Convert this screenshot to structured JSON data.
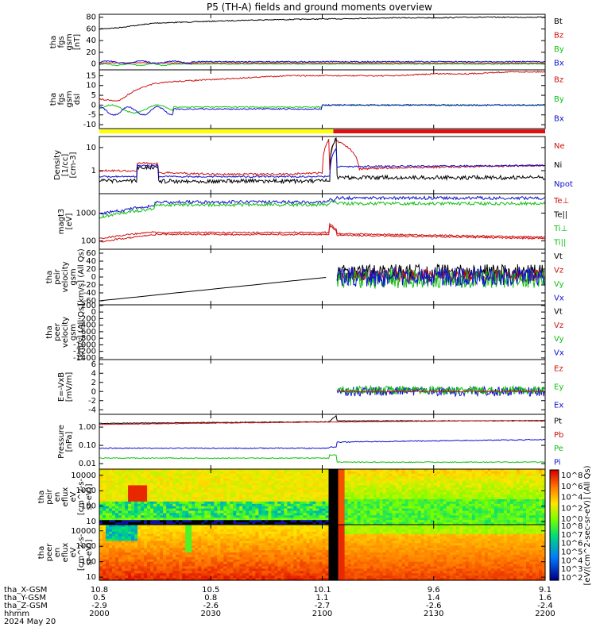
{
  "title": "P5 (TH-A) fields and ground moments overview",
  "colors": {
    "black": "#000000",
    "red": "#d01010",
    "green": "#10c010",
    "blue": "#1010d0",
    "yellow": "#ffff00",
    "barred": "#e01010"
  },
  "xaxis": {
    "rows": [
      {
        "label": "tha_X-GSM",
        "values": [
          "10.8",
          "10.5",
          "10.1",
          "9.6",
          "9.1"
        ]
      },
      {
        "label": "tha_Y-GSM",
        "values": [
          "0.5",
          "0.8",
          "1.1",
          "1.4",
          "1.6"
        ]
      },
      {
        "label": "tha_Z-GSM",
        "values": [
          "-2.9",
          "-2.6",
          "-2.7",
          "-2.6",
          "-2.4"
        ]
      },
      {
        "label": "hhmm",
        "values": [
          "2000",
          "2030",
          "2100",
          "2130",
          "2200"
        ]
      }
    ],
    "date": "2024 May 20",
    "hhmm_ticks": [
      0,
      30,
      60,
      90,
      120
    ]
  },
  "colorbar": {
    "label": "[eV/(cm^2-sec-sr-eV)] (All Qs)",
    "ticks": [
      "10^8",
      "10^6",
      "10^4",
      "10^2",
      "10^0"
    ],
    "ticks2": [
      "10^8",
      "10^7",
      "10^6",
      "10^5",
      "10^4",
      "10^3",
      "10^2"
    ]
  },
  "chart_data": [
    {
      "type": "line",
      "ylabel": [
        "tha",
        "fgs",
        "gsm",
        "[nT]"
      ],
      "yticks": [
        "80",
        "60",
        "40",
        "20",
        "0"
      ],
      "ylim": [
        -10,
        85
      ],
      "series": [
        {
          "name": "Bt",
          "color": "#000000"
        },
        {
          "name": "Bz",
          "color": "#d01010"
        },
        {
          "name": "By",
          "color": "#10c010"
        },
        {
          "name": "Bx",
          "color": "#1010d0"
        }
      ],
      "x": [
        0,
        5,
        10,
        15,
        20,
        30,
        40,
        50,
        60,
        62,
        70,
        80,
        90,
        100,
        110,
        120
      ],
      "values": {
        "Bt": [
          60,
          62,
          66,
          70,
          71,
          73,
          75,
          76,
          77,
          77,
          78,
          79,
          79,
          80,
          80,
          80
        ]
      }
    },
    {
      "type": "line",
      "ylabel": [
        "tha",
        "fgs",
        "gsm",
        "dsl"
      ],
      "yticks": [
        "15",
        "10",
        "5",
        "0",
        "-5",
        "-10"
      ],
      "ylim": [
        -12,
        18
      ],
      "series": [
        {
          "name": "Bz",
          "color": "#d01010"
        },
        {
          "name": "By",
          "color": "#10c010"
        },
        {
          "name": "Bx",
          "color": "#1010d0"
        }
      ],
      "x": [
        0,
        5,
        10,
        15,
        20,
        30,
        40,
        50,
        60,
        62,
        70,
        80,
        90,
        100,
        110,
        120
      ],
      "values": {
        "Bz": [
          3,
          2,
          8,
          11,
          12,
          13,
          14,
          15,
          15,
          15,
          15,
          15,
          16,
          16,
          17,
          17
        ]
      }
    },
    {
      "type": "line",
      "ylabel": [
        "Density",
        "[1/cc]",
        "[cm-3]"
      ],
      "yticks": [
        "10",
        "1"
      ],
      "ylim": [
        0.1,
        30
      ],
      "series": [
        {
          "name": "Ne",
          "color": "#d01010"
        },
        {
          "name": "Ni",
          "color": "#000000"
        },
        {
          "name": "Npot",
          "color": "#1010d0"
        }
      ],
      "x": [
        0,
        5,
        10,
        15,
        20,
        30,
        40,
        50,
        60,
        62,
        70,
        80,
        90,
        100,
        110,
        120
      ],
      "values": {
        "Ne": [
          1,
          1,
          0.9,
          0.8,
          0.8,
          0.7,
          0.7,
          0.7,
          0.8,
          25,
          1.2,
          1.3,
          1.4,
          1.5,
          1.6,
          1.7
        ]
      }
    },
    {
      "type": "line",
      "ylabel": [
        "magt3",
        "[eV]"
      ],
      "yticks": [
        "1000",
        "100"
      ],
      "ylim": [
        50,
        5000
      ],
      "series": [
        {
          "name": "Te⊥",
          "color": "#d01010"
        },
        {
          "name": "Te||",
          "color": "#000000"
        },
        {
          "name": "Ti⊥",
          "color": "#10c010"
        },
        {
          "name": "Ti||",
          "color": "#10c010"
        }
      ]
    },
    {
      "type": "line",
      "ylabel": [
        "tha",
        "peir",
        "velocity",
        "gsm",
        "[km/s] (All Qs)"
      ],
      "yticks": [
        "60",
        "40",
        "20",
        "0",
        "-20",
        "-40",
        "-60"
      ],
      "ylim": [
        -70,
        70
      ],
      "series": [
        {
          "name": "Vt",
          "color": "#000000"
        },
        {
          "name": "Vz",
          "color": "#d01010"
        },
        {
          "name": "Vy",
          "color": "#10c010"
        },
        {
          "name": "Vx",
          "color": "#1010d0"
        }
      ]
    },
    {
      "type": "line",
      "ylabel": [
        "tha",
        "peer",
        "velocity",
        "gsm",
        "[km/s] (All Qs)"
      ],
      "yticks": [
        "200",
        "0",
        "-200",
        "-400",
        "-600",
        "-800",
        "-1000",
        "-1200",
        "-1400"
      ],
      "ylim": [
        -1450,
        220
      ],
      "series": [
        {
          "name": "Vt",
          "color": "#000000"
        },
        {
          "name": "Vz",
          "color": "#d01010"
        },
        {
          "name": "Vy",
          "color": "#10c010"
        },
        {
          "name": "Vx",
          "color": "#1010d0"
        }
      ]
    },
    {
      "type": "line",
      "ylabel": [
        "E=-VxB",
        "[mV/m]"
      ],
      "yticks": [
        "6",
        "4",
        "2",
        "0",
        "-2",
        "-4"
      ],
      "ylim": [
        -5,
        7
      ],
      "series": [
        {
          "name": "Ez",
          "color": "#d01010"
        },
        {
          "name": "Ey",
          "color": "#10c010"
        },
        {
          "name": "Ex",
          "color": "#1010d0"
        }
      ]
    },
    {
      "type": "line",
      "ylabel": [
        "Pressure",
        "[nPa]"
      ],
      "yticks": [
        "1.00",
        "0.10",
        "0.01"
      ],
      "ylim": [
        0.005,
        5
      ],
      "series": [
        {
          "name": "Pt",
          "color": "#000000"
        },
        {
          "name": "Pb",
          "color": "#d01010"
        },
        {
          "name": "Pe",
          "color": "#10c010"
        },
        {
          "name": "Pi",
          "color": "#1010d0"
        }
      ]
    },
    {
      "type": "heatmap",
      "ylabel": [
        "tha",
        "peir",
        "en",
        "eflux",
        "eV",
        "[cm^2-s-",
        "sr-eV)]"
      ],
      "yticks": [
        "10000",
        "1000",
        "100",
        "10"
      ]
    },
    {
      "type": "heatmap",
      "ylabel": [
        "tha",
        "peer",
        "en",
        "eflux",
        "eV",
        "[cm^2-s-",
        "sr-eV)]"
      ],
      "yticks": [
        "10000",
        "1000",
        "100",
        "10"
      ]
    }
  ]
}
